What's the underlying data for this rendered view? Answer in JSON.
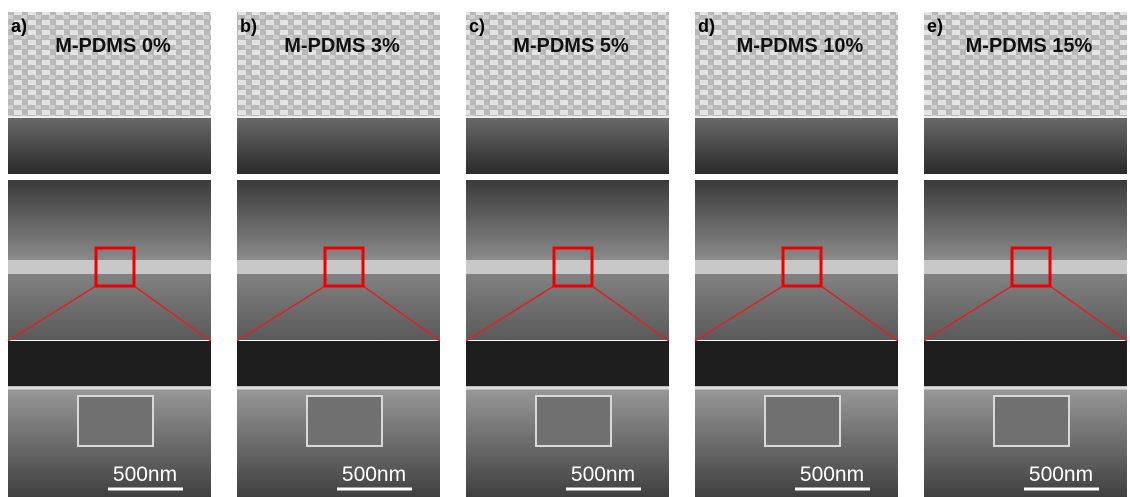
{
  "panels": [
    {
      "letter": "a)",
      "label": "M-PDMS 0%",
      "scale_bar": "500nm"
    },
    {
      "letter": "b)",
      "label": "M-PDMS 3%",
      "scale_bar": "500nm"
    },
    {
      "letter": "c)",
      "label": "M-PDMS 5%",
      "scale_bar": "500nm"
    },
    {
      "letter": "d)",
      "label": "M-PDMS 10%",
      "scale_bar": "500nm"
    },
    {
      "letter": "e)",
      "label": "M-PDMS 15%",
      "scale_bar": "500nm"
    }
  ]
}
